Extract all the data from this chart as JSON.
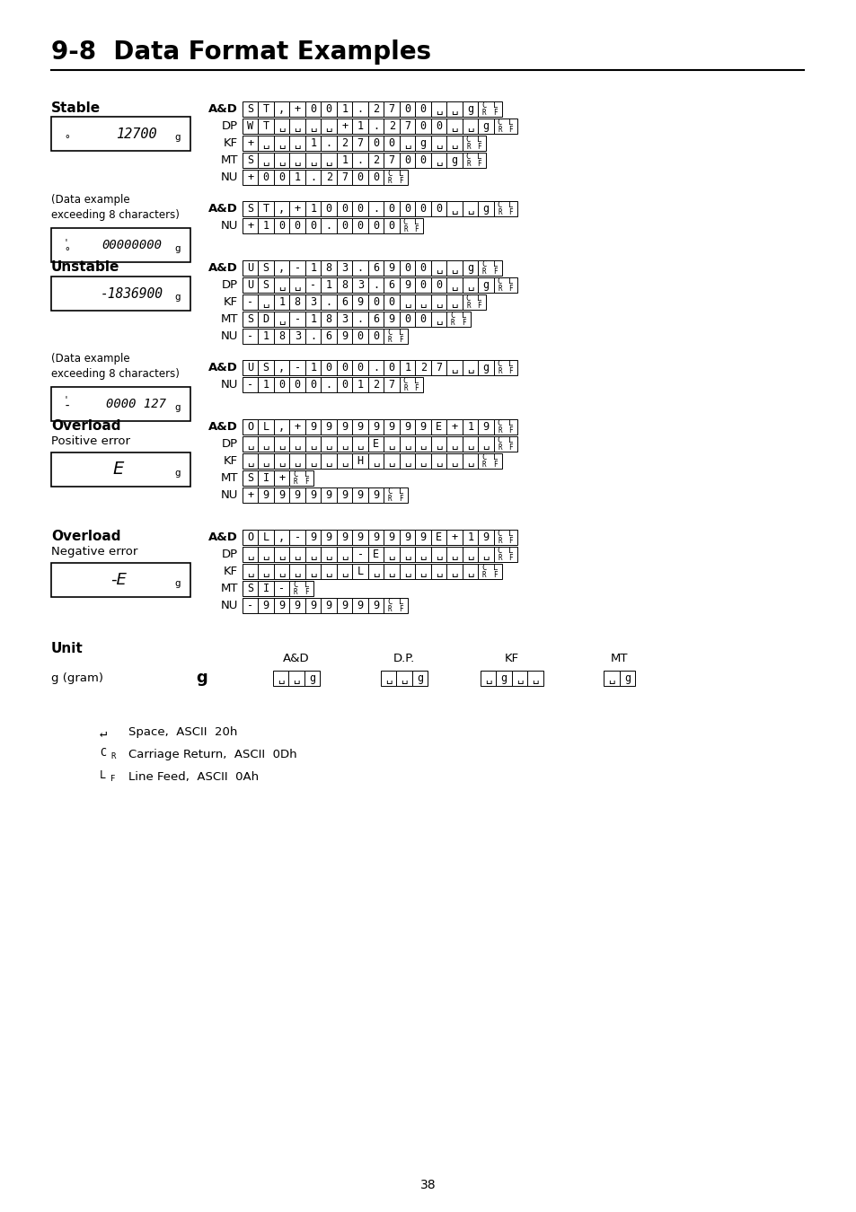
{
  "title": "9-8  Data Format Examples",
  "page_number": "38",
  "bg": "#ffffff",
  "sections": [
    {
      "label": "Stable",
      "sublabel": null,
      "display_lines": [
        {
          "symbol": "°",
          "value": "12700",
          "unit": "g",
          "italic": true
        },
        {
          "symbol": "°",
          "value": "00000000",
          "unit": "g",
          "italic": true,
          "tick": true
        }
      ],
      "data_example": true,
      "row_groups": [
        [
          {
            "fmt": "A&D",
            "cells": [
              "S",
              "T",
              ",",
              "+",
              "0",
              "0",
              "1",
              ".",
              "2",
              "7",
              "0",
              "0",
              "sp",
              "sp",
              "g",
              "CRLF"
            ]
          },
          {
            "fmt": "DP",
            "cells": [
              "W",
              "T",
              "sp",
              "sp",
              "sp",
              "sp",
              "+",
              "1",
              ".",
              "2",
              "7",
              "0",
              "0",
              "sp",
              "sp",
              "g",
              "CRLF"
            ]
          },
          {
            "fmt": "KF",
            "cells": [
              "+",
              "sp",
              "sp",
              "sp",
              "1",
              ".",
              "2",
              "7",
              "0",
              "0",
              "sp",
              "g",
              "sp",
              "sp",
              "CRLF"
            ]
          },
          {
            "fmt": "MT",
            "cells": [
              "S",
              "sp",
              "sp",
              "sp",
              "sp",
              "sp",
              "1",
              ".",
              "2",
              "7",
              "0",
              "0",
              "sp",
              "g",
              "CRLF"
            ]
          },
          {
            "fmt": "NU",
            "cells": [
              "+",
              "0",
              "0",
              "1",
              ".",
              "2",
              "7",
              "0",
              "0",
              "CRLF"
            ]
          }
        ],
        [
          {
            "fmt": "A&D",
            "cells": [
              "S",
              "T",
              ",",
              "+",
              "1",
              "0",
              "0",
              "0",
              ".",
              "0",
              "0",
              "0",
              "0",
              "sp",
              "sp",
              "g",
              "CRLF"
            ]
          },
          {
            "fmt": "NU",
            "cells": [
              "+",
              "1",
              "0",
              "0",
              "0",
              ".",
              "0",
              "0",
              "0",
              "0",
              "CRLF"
            ]
          }
        ]
      ]
    },
    {
      "label": "Unstable",
      "sublabel": null,
      "display_lines": [
        {
          "symbol": "",
          "value": "-1836900",
          "unit": "g",
          "italic": true
        },
        {
          "symbol": "-",
          "value": "0000 127",
          "unit": "g",
          "italic": true,
          "tick": true
        }
      ],
      "data_example": true,
      "row_groups": [
        [
          {
            "fmt": "A&D",
            "cells": [
              "U",
              "S",
              ",",
              "-",
              "1",
              "8",
              "3",
              ".",
              "6",
              "9",
              "0",
              "0",
              "sp",
              "sp",
              "g",
              "CRLF"
            ]
          },
          {
            "fmt": "DP",
            "cells": [
              "U",
              "S",
              "sp",
              "sp",
              "-",
              "1",
              "8",
              "3",
              ".",
              "6",
              "9",
              "0",
              "0",
              "sp",
              "sp",
              "g",
              "CRLF"
            ]
          },
          {
            "fmt": "KF",
            "cells": [
              "-",
              "sp",
              "1",
              "8",
              "3",
              ".",
              "6",
              "9",
              "0",
              "0",
              "sp",
              "sp",
              "sp",
              "sp",
              "CRLF"
            ]
          },
          {
            "fmt": "MT",
            "cells": [
              "S",
              "D",
              "sp",
              "-",
              "1",
              "8",
              "3",
              ".",
              "6",
              "9",
              "0",
              "0",
              "sp",
              "CRLF"
            ]
          },
          {
            "fmt": "NU",
            "cells": [
              "-",
              "1",
              "8",
              "3",
              ".",
              "6",
              "9",
              "0",
              "0",
              "CRLF"
            ]
          }
        ],
        [
          {
            "fmt": "A&D",
            "cells": [
              "U",
              "S",
              ",",
              "-",
              "1",
              "0",
              "0",
              "0",
              ".",
              "0",
              "1",
              "2",
              "7",
              "sp",
              "sp",
              "g",
              "CRLF"
            ]
          },
          {
            "fmt": "NU",
            "cells": [
              "-",
              "1",
              "0",
              "0",
              "0",
              ".",
              "0",
              "1",
              "2",
              "7",
              "CRLF"
            ]
          }
        ]
      ]
    },
    {
      "label": "Overload",
      "sublabel": "Positive error",
      "display_lines": [
        {
          "symbol": "",
          "value": "E",
          "unit": "g",
          "italic": true,
          "big": true
        }
      ],
      "data_example": false,
      "row_groups": [
        [
          {
            "fmt": "A&D",
            "cells": [
              "O",
              "L",
              ",",
              "+",
              "9",
              "9",
              "9",
              "9",
              "9",
              "9",
              "9",
              "9",
              "E",
              "+",
              "1",
              "9",
              "CRLF"
            ]
          },
          {
            "fmt": "DP",
            "cells": [
              "sp",
              "sp",
              "sp",
              "sp",
              "sp",
              "sp",
              "sp",
              "sp",
              "E",
              "sp",
              "sp",
              "sp",
              "sp",
              "sp",
              "sp",
              "sp",
              "CRLF"
            ]
          },
          {
            "fmt": "KF",
            "cells": [
              "sp",
              "sp",
              "sp",
              "sp",
              "sp",
              "sp",
              "sp",
              "H",
              "sp",
              "sp",
              "sp",
              "sp",
              "sp",
              "sp",
              "sp",
              "CRLF"
            ]
          },
          {
            "fmt": "MT",
            "cells": [
              "S",
              "I",
              "+",
              "CRLF"
            ]
          },
          {
            "fmt": "NU",
            "cells": [
              "+",
              "9",
              "9",
              "9",
              "9",
              "9",
              "9",
              "9",
              "9",
              "CRLF"
            ]
          }
        ]
      ]
    },
    {
      "label": "Overload",
      "sublabel": "Negative error",
      "display_lines": [
        {
          "symbol": "",
          "value": "-E",
          "unit": "g",
          "italic": true,
          "big": true
        }
      ],
      "data_example": false,
      "row_groups": [
        [
          {
            "fmt": "A&D",
            "cells": [
              "O",
              "L",
              ",",
              "-",
              "9",
              "9",
              "9",
              "9",
              "9",
              "9",
              "9",
              "9",
              "E",
              "+",
              "1",
              "9",
              "CRLF"
            ]
          },
          {
            "fmt": "DP",
            "cells": [
              "sp",
              "sp",
              "sp",
              "sp",
              "sp",
              "sp",
              "sp",
              "-",
              "E",
              "sp",
              "sp",
              "sp",
              "sp",
              "sp",
              "sp",
              "sp",
              "CRLF"
            ]
          },
          {
            "fmt": "KF",
            "cells": [
              "sp",
              "sp",
              "sp",
              "sp",
              "sp",
              "sp",
              "sp",
              "L",
              "sp",
              "sp",
              "sp",
              "sp",
              "sp",
              "sp",
              "sp",
              "CRLF"
            ]
          },
          {
            "fmt": "MT",
            "cells": [
              "S",
              "I",
              "-",
              "CRLF"
            ]
          },
          {
            "fmt": "NU",
            "cells": [
              "-",
              "9",
              "9",
              "9",
              "9",
              "9",
              "9",
              "9",
              "9",
              "CRLF"
            ]
          }
        ]
      ]
    }
  ],
  "unit_section": {
    "label": "Unit",
    "gram_label": "g (gram)",
    "gram_symbol": "g",
    "columns": [
      {
        "header": "A&D",
        "cells": [
          "sp",
          "sp",
          "g"
        ]
      },
      {
        "header": "D.P.",
        "cells": [
          "sp",
          "sp",
          "g"
        ]
      },
      {
        "header": "KF",
        "cells": [
          "sp",
          "g",
          "sp",
          "sp"
        ]
      },
      {
        "header": "MT",
        "cells": [
          "sp",
          "g"
        ]
      }
    ]
  },
  "legend": [
    {
      "symbol": "↵",
      "sub": null,
      "text": "Space,  ASCII  20h"
    },
    {
      "symbol": "C",
      "sub": "R",
      "text": "Carriage Return,  ASCII  0Dh"
    },
    {
      "symbol": "L",
      "sub": "F",
      "text": "Line Feed,  ASCII  0Ah"
    }
  ]
}
